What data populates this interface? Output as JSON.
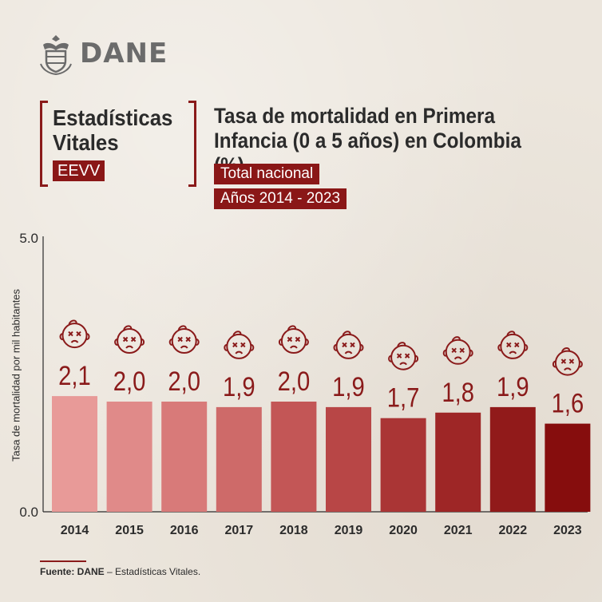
{
  "logo": {
    "wordmark": "DANE",
    "icon": "coat-of-arms-icon"
  },
  "section": {
    "title": "Estadísticas Vitales",
    "abbreviation": "EEVV"
  },
  "header": {
    "title": "Tasa de mortalidad en Primera Infancia (0 a 5 años) en Colombia (%)",
    "tag1": "Total nacional",
    "tag2": "Años 2014 - 2023"
  },
  "chart_data": {
    "type": "bar",
    "categories": [
      "2014",
      "2015",
      "2016",
      "2017",
      "2018",
      "2019",
      "2020",
      "2021",
      "2022",
      "2023"
    ],
    "values": [
      2.1,
      2.0,
      2.0,
      1.9,
      2.0,
      1.9,
      1.7,
      1.8,
      1.9,
      1.6
    ],
    "value_labels": [
      "2,1",
      "2,0",
      "2,0",
      "1,9",
      "2,0",
      "1,9",
      "1,7",
      "1,8",
      "1,9",
      "1,6"
    ],
    "ylabel": "Tasa de mortalidad por mil habitantes",
    "ylim": [
      0,
      5
    ],
    "ytick_labels": [
      "0.0",
      "5.0"
    ],
    "colors": [
      "#e89a98",
      "#e08a89",
      "#d87a79",
      "#ce6a69",
      "#c35656",
      "#b84646",
      "#aa3535",
      "#9e2626",
      "#911a1a",
      "#860d0d"
    ],
    "value_label_color": "#8a1a1a",
    "marker_icon": "sad-baby-face-icon",
    "grid": false
  },
  "source": {
    "prefix": "Fuente: DANE",
    "text": "– Estadísticas Vitales."
  }
}
